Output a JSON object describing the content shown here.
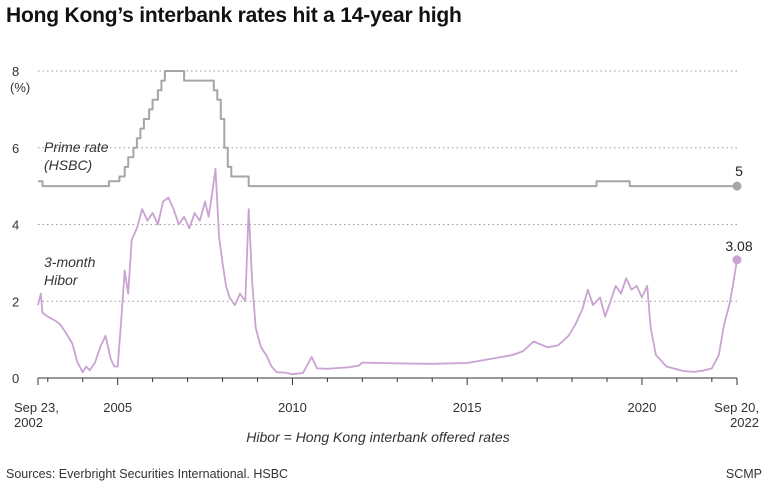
{
  "title": "Hong Kong’s interbank rates hit a 14-year high",
  "source": "Sources: Everbright Securities International. HSBC",
  "brand": "SCMP",
  "chart_data": {
    "type": "line",
    "title": "Hong Kong’s interbank rates hit a 14-year high",
    "ylabel": "(%)",
    "ylim": [
      0,
      8
    ],
    "yticks": [
      0,
      2,
      4,
      6,
      8
    ],
    "ytick_labels": [
      "0",
      "2",
      "4",
      "6",
      "8"
    ],
    "xlim": [
      2002.72,
      2022.72
    ],
    "xticks": [
      {
        "x": 2002.72,
        "lines": [
          "Sep 23,",
          "2002"
        ]
      },
      {
        "x": 2005,
        "lines": [
          "2005"
        ]
      },
      {
        "x": 2010,
        "lines": [
          "2010"
        ]
      },
      {
        "x": 2015,
        "lines": [
          "2015"
        ]
      },
      {
        "x": 2020,
        "lines": [
          "2020"
        ]
      },
      {
        "x": 2022.72,
        "lines": [
          "Sep 20,",
          "2022"
        ]
      }
    ],
    "note": "Hibor = Hong Kong interbank offered rates",
    "grid": true,
    "series": [
      {
        "name": "Prime rate (HSBC)",
        "label_lines": [
          "Prime rate",
          "(HSBC)"
        ],
        "color": "#a6a6a6",
        "step": true,
        "end_label": "5",
        "points": [
          [
            2002.72,
            5.125
          ],
          [
            2002.85,
            5.0
          ],
          [
            2004.75,
            5.125
          ],
          [
            2004.95,
            5.125
          ],
          [
            2005.05,
            5.25
          ],
          [
            2005.2,
            5.5
          ],
          [
            2005.3,
            5.75
          ],
          [
            2005.45,
            6.0
          ],
          [
            2005.55,
            6.25
          ],
          [
            2005.65,
            6.5
          ],
          [
            2005.75,
            6.75
          ],
          [
            2005.9,
            7.0
          ],
          [
            2006.0,
            7.25
          ],
          [
            2006.15,
            7.5
          ],
          [
            2006.25,
            7.75
          ],
          [
            2006.35,
            8.0
          ],
          [
            2006.9,
            7.75
          ],
          [
            2007.75,
            7.5
          ],
          [
            2007.85,
            7.25
          ],
          [
            2007.95,
            6.75
          ],
          [
            2008.05,
            6.0
          ],
          [
            2008.15,
            5.5
          ],
          [
            2008.25,
            5.25
          ],
          [
            2008.75,
            5.0
          ],
          [
            2018.7,
            5.125
          ],
          [
            2019.65,
            5.0
          ],
          [
            2022.72,
            5.0
          ]
        ]
      },
      {
        "name": "3-month Hibor",
        "label_lines": [
          "3-month",
          "Hibor"
        ],
        "color": "#c9a3d2",
        "step": false,
        "end_label": "3.08",
        "points": [
          [
            2002.72,
            1.9
          ],
          [
            2002.8,
            2.2
          ],
          [
            2002.85,
            1.7
          ],
          [
            2003.0,
            1.6
          ],
          [
            2003.2,
            1.5
          ],
          [
            2003.35,
            1.4
          ],
          [
            2003.5,
            1.2
          ],
          [
            2003.7,
            0.9
          ],
          [
            2003.85,
            0.4
          ],
          [
            2004.0,
            0.15
          ],
          [
            2004.1,
            0.3
          ],
          [
            2004.2,
            0.2
          ],
          [
            2004.35,
            0.4
          ],
          [
            2004.5,
            0.8
          ],
          [
            2004.65,
            1.1
          ],
          [
            2004.8,
            0.5
          ],
          [
            2004.9,
            0.3
          ],
          [
            2005.0,
            0.3
          ],
          [
            2005.1,
            1.5
          ],
          [
            2005.2,
            2.8
          ],
          [
            2005.3,
            2.2
          ],
          [
            2005.4,
            3.6
          ],
          [
            2005.55,
            3.9
          ],
          [
            2005.7,
            4.4
          ],
          [
            2005.85,
            4.1
          ],
          [
            2006.0,
            4.3
          ],
          [
            2006.15,
            4.0
          ],
          [
            2006.3,
            4.6
          ],
          [
            2006.45,
            4.7
          ],
          [
            2006.6,
            4.4
          ],
          [
            2006.75,
            4.0
          ],
          [
            2006.9,
            4.2
          ],
          [
            2007.05,
            3.9
          ],
          [
            2007.2,
            4.3
          ],
          [
            2007.35,
            4.1
          ],
          [
            2007.5,
            4.6
          ],
          [
            2007.6,
            4.2
          ],
          [
            2007.7,
            4.8
          ],
          [
            2007.8,
            5.45
          ],
          [
            2007.9,
            3.7
          ],
          [
            2008.0,
            3.0
          ],
          [
            2008.1,
            2.4
          ],
          [
            2008.2,
            2.1
          ],
          [
            2008.35,
            1.9
          ],
          [
            2008.5,
            2.2
          ],
          [
            2008.65,
            2.0
          ],
          [
            2008.75,
            4.4
          ],
          [
            2008.85,
            2.5
          ],
          [
            2008.95,
            1.3
          ],
          [
            2009.1,
            0.8
          ],
          [
            2009.25,
            0.6
          ],
          [
            2009.4,
            0.3
          ],
          [
            2009.55,
            0.15
          ],
          [
            2009.8,
            0.14
          ],
          [
            2010.0,
            0.1
          ],
          [
            2010.3,
            0.13
          ],
          [
            2010.55,
            0.55
          ],
          [
            2010.7,
            0.25
          ],
          [
            2011.0,
            0.24
          ],
          [
            2011.3,
            0.26
          ],
          [
            2011.6,
            0.28
          ],
          [
            2011.9,
            0.32
          ],
          [
            2012.0,
            0.4
          ],
          [
            2013.0,
            0.38
          ],
          [
            2014.0,
            0.37
          ],
          [
            2015.0,
            0.39
          ],
          [
            2016.0,
            0.55
          ],
          [
            2016.3,
            0.6
          ],
          [
            2016.6,
            0.7
          ],
          [
            2016.9,
            0.95
          ],
          [
            2017.3,
            0.8
          ],
          [
            2017.6,
            0.85
          ],
          [
            2017.9,
            1.1
          ],
          [
            2018.1,
            1.4
          ],
          [
            2018.3,
            1.8
          ],
          [
            2018.45,
            2.3
          ],
          [
            2018.6,
            1.9
          ],
          [
            2018.8,
            2.1
          ],
          [
            2018.95,
            1.6
          ],
          [
            2019.1,
            2.0
          ],
          [
            2019.25,
            2.4
          ],
          [
            2019.4,
            2.2
          ],
          [
            2019.55,
            2.6
          ],
          [
            2019.7,
            2.3
          ],
          [
            2019.85,
            2.4
          ],
          [
            2020.0,
            2.1
          ],
          [
            2020.15,
            2.4
          ],
          [
            2020.25,
            1.3
          ],
          [
            2020.4,
            0.6
          ],
          [
            2020.55,
            0.45
          ],
          [
            2020.7,
            0.3
          ],
          [
            2020.9,
            0.25
          ],
          [
            2021.2,
            0.18
          ],
          [
            2021.5,
            0.16
          ],
          [
            2021.8,
            0.2
          ],
          [
            2022.0,
            0.25
          ],
          [
            2022.2,
            0.6
          ],
          [
            2022.35,
            1.4
          ],
          [
            2022.5,
            1.9
          ],
          [
            2022.6,
            2.4
          ],
          [
            2022.72,
            3.08
          ]
        ]
      }
    ]
  }
}
